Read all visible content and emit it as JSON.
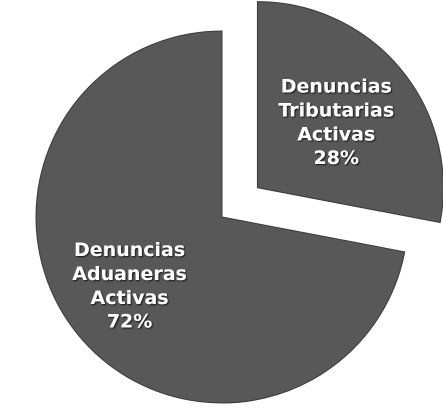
{
  "chart_data": {
    "type": "pie",
    "categories": [
      "Denuncias Tributarias Activas",
      "Denuncias Aduaneras Activas"
    ],
    "values": [
      28,
      72
    ],
    "value_labels": [
      "28%",
      "72%"
    ],
    "colors": [
      "#585858",
      "#585858"
    ]
  }
}
